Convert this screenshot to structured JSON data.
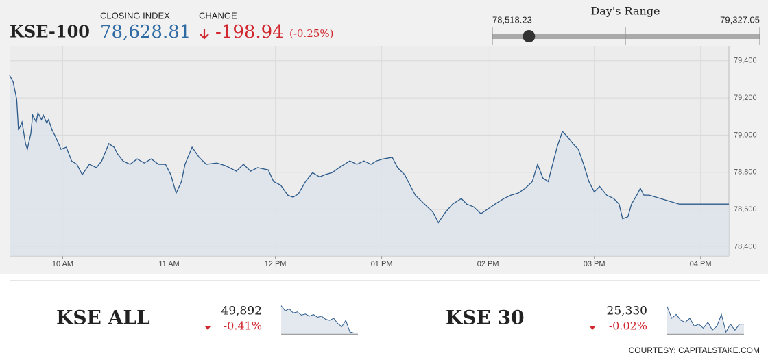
{
  "header": {
    "symbol": "KSE-100",
    "closing_label": "CLOSING INDEX",
    "closing": {
      "value": 78628.81,
      "label": "78,628.81"
    },
    "change_label": "CHANGE",
    "change": -198.94,
    "change_pct": {
      "value": -0.25,
      "label": "(-0.25%)"
    }
  },
  "range": {
    "title": "Day's Range",
    "low": {
      "value": 78518.23,
      "label": "78,518.23"
    },
    "high": {
      "value": 79327.05,
      "label": "79,327.05"
    }
  },
  "chart_data": {
    "type": "line",
    "color": "#2b5a8a",
    "x": [
      570,
      572,
      574,
      575,
      577,
      579,
      580,
      582,
      583,
      585,
      586,
      588,
      589,
      591,
      592,
      594,
      596,
      599,
      602,
      605,
      608,
      611,
      615,
      619,
      622,
      626,
      629,
      631,
      634,
      638,
      642,
      646,
      650,
      654,
      658,
      661,
      664,
      667,
      669,
      673,
      677,
      681,
      687,
      692,
      698,
      702,
      706,
      710,
      716,
      719,
      723,
      727,
      730,
      733,
      737,
      741,
      745,
      748,
      752,
      756,
      762,
      766,
      770,
      774,
      777,
      781,
      786,
      789,
      793,
      796,
      799,
      803,
      809,
      812,
      816,
      820,
      825,
      828,
      832,
      836,
      840,
      844,
      849,
      853,
      857,
      861,
      865,
      868,
      871,
      874,
      876,
      879,
      882,
      885,
      888,
      891,
      894,
      897,
      900,
      903,
      907,
      911,
      914,
      916,
      919,
      921,
      924,
      926,
      928,
      931,
      948,
      976
    ],
    "values": [
      79322,
      79286,
      79193,
      79027,
      79070,
      78954,
      78924,
      79009,
      79108,
      79070,
      79120,
      79083,
      79108,
      79064,
      79083,
      79027,
      78990,
      78924,
      78935,
      78861,
      78843,
      78787,
      78843,
      78825,
      78861,
      78954,
      78935,
      78898,
      78861,
      78843,
      78872,
      78850,
      78872,
      78843,
      78843,
      78787,
      78688,
      78750,
      78843,
      78935,
      78880,
      78843,
      78850,
      78835,
      78806,
      78843,
      78806,
      78825,
      78813,
      78750,
      78731,
      78677,
      78666,
      78684,
      78750,
      78798,
      78775,
      78787,
      78798,
      78825,
      78861,
      78843,
      78861,
      78843,
      78861,
      78872,
      78880,
      78825,
      78787,
      78731,
      78677,
      78640,
      78585,
      78529,
      78585,
      78629,
      78659,
      78629,
      78614,
      78577,
      78603,
      78629,
      78659,
      78677,
      78688,
      78714,
      78750,
      78843,
      78769,
      78750,
      78825,
      78935,
      79020,
      78990,
      78954,
      78924,
      78843,
      78750,
      78695,
      78724,
      78677,
      78659,
      78629,
      78550,
      78561,
      78629,
      78677,
      78714,
      78677,
      78677,
      78629,
      78629
    ],
    "xlim": [
      570,
      976
    ],
    "xticks": [
      {
        "value": 600,
        "label": "10 AM"
      },
      {
        "value": 660,
        "label": "11 AM"
      },
      {
        "value": 720,
        "label": "12 PM"
      },
      {
        "value": 780,
        "label": "01 PM"
      },
      {
        "value": 840,
        "label": "02 PM"
      },
      {
        "value": 900,
        "label": "03 PM"
      },
      {
        "value": 960,
        "label": "04 PM"
      }
    ],
    "ylim": [
      78350,
      79480
    ],
    "yticks": [
      {
        "value": 78400,
        "label": "78,400"
      },
      {
        "value": 78600,
        "label": "78,600"
      },
      {
        "value": 78800,
        "label": "78,800"
      },
      {
        "value": 79000,
        "label": "79,000"
      },
      {
        "value": 79200,
        "label": "79,200"
      },
      {
        "value": 79400,
        "label": "79,400"
      }
    ],
    "grid": true
  },
  "indices": [
    {
      "name": "KSE ALL",
      "value": {
        "value": 49892,
        "label": "49,892"
      },
      "change": {
        "value": -0.41,
        "label": "-0.41%"
      },
      "spark": {
        "type": "line",
        "values": [
          50130,
          50080,
          50100,
          50060,
          50070,
          50040,
          50050,
          50030,
          50045,
          50020,
          50030,
          50000,
          49990,
          50010,
          49960,
          49930,
          49990,
          49880,
          49870,
          49870
        ],
        "ylim": [
          49860,
          50140
        ]
      }
    },
    {
      "name": "KSE 30",
      "value": {
        "value": 25330,
        "label": "25,330"
      },
      "change": {
        "value": -0.02,
        "label": "-0.02%"
      },
      "spark": {
        "type": "line",
        "values": [
          25420,
          25360,
          25380,
          25350,
          25340,
          25360,
          25320,
          25330,
          25310,
          25340,
          25300,
          25320,
          25380,
          25290,
          25330,
          25300,
          25330,
          25330
        ],
        "ylim": [
          25280,
          25430
        ]
      }
    }
  ],
  "footer": {
    "credit": "COURTESY: CAPITALSTAKE.COM"
  }
}
